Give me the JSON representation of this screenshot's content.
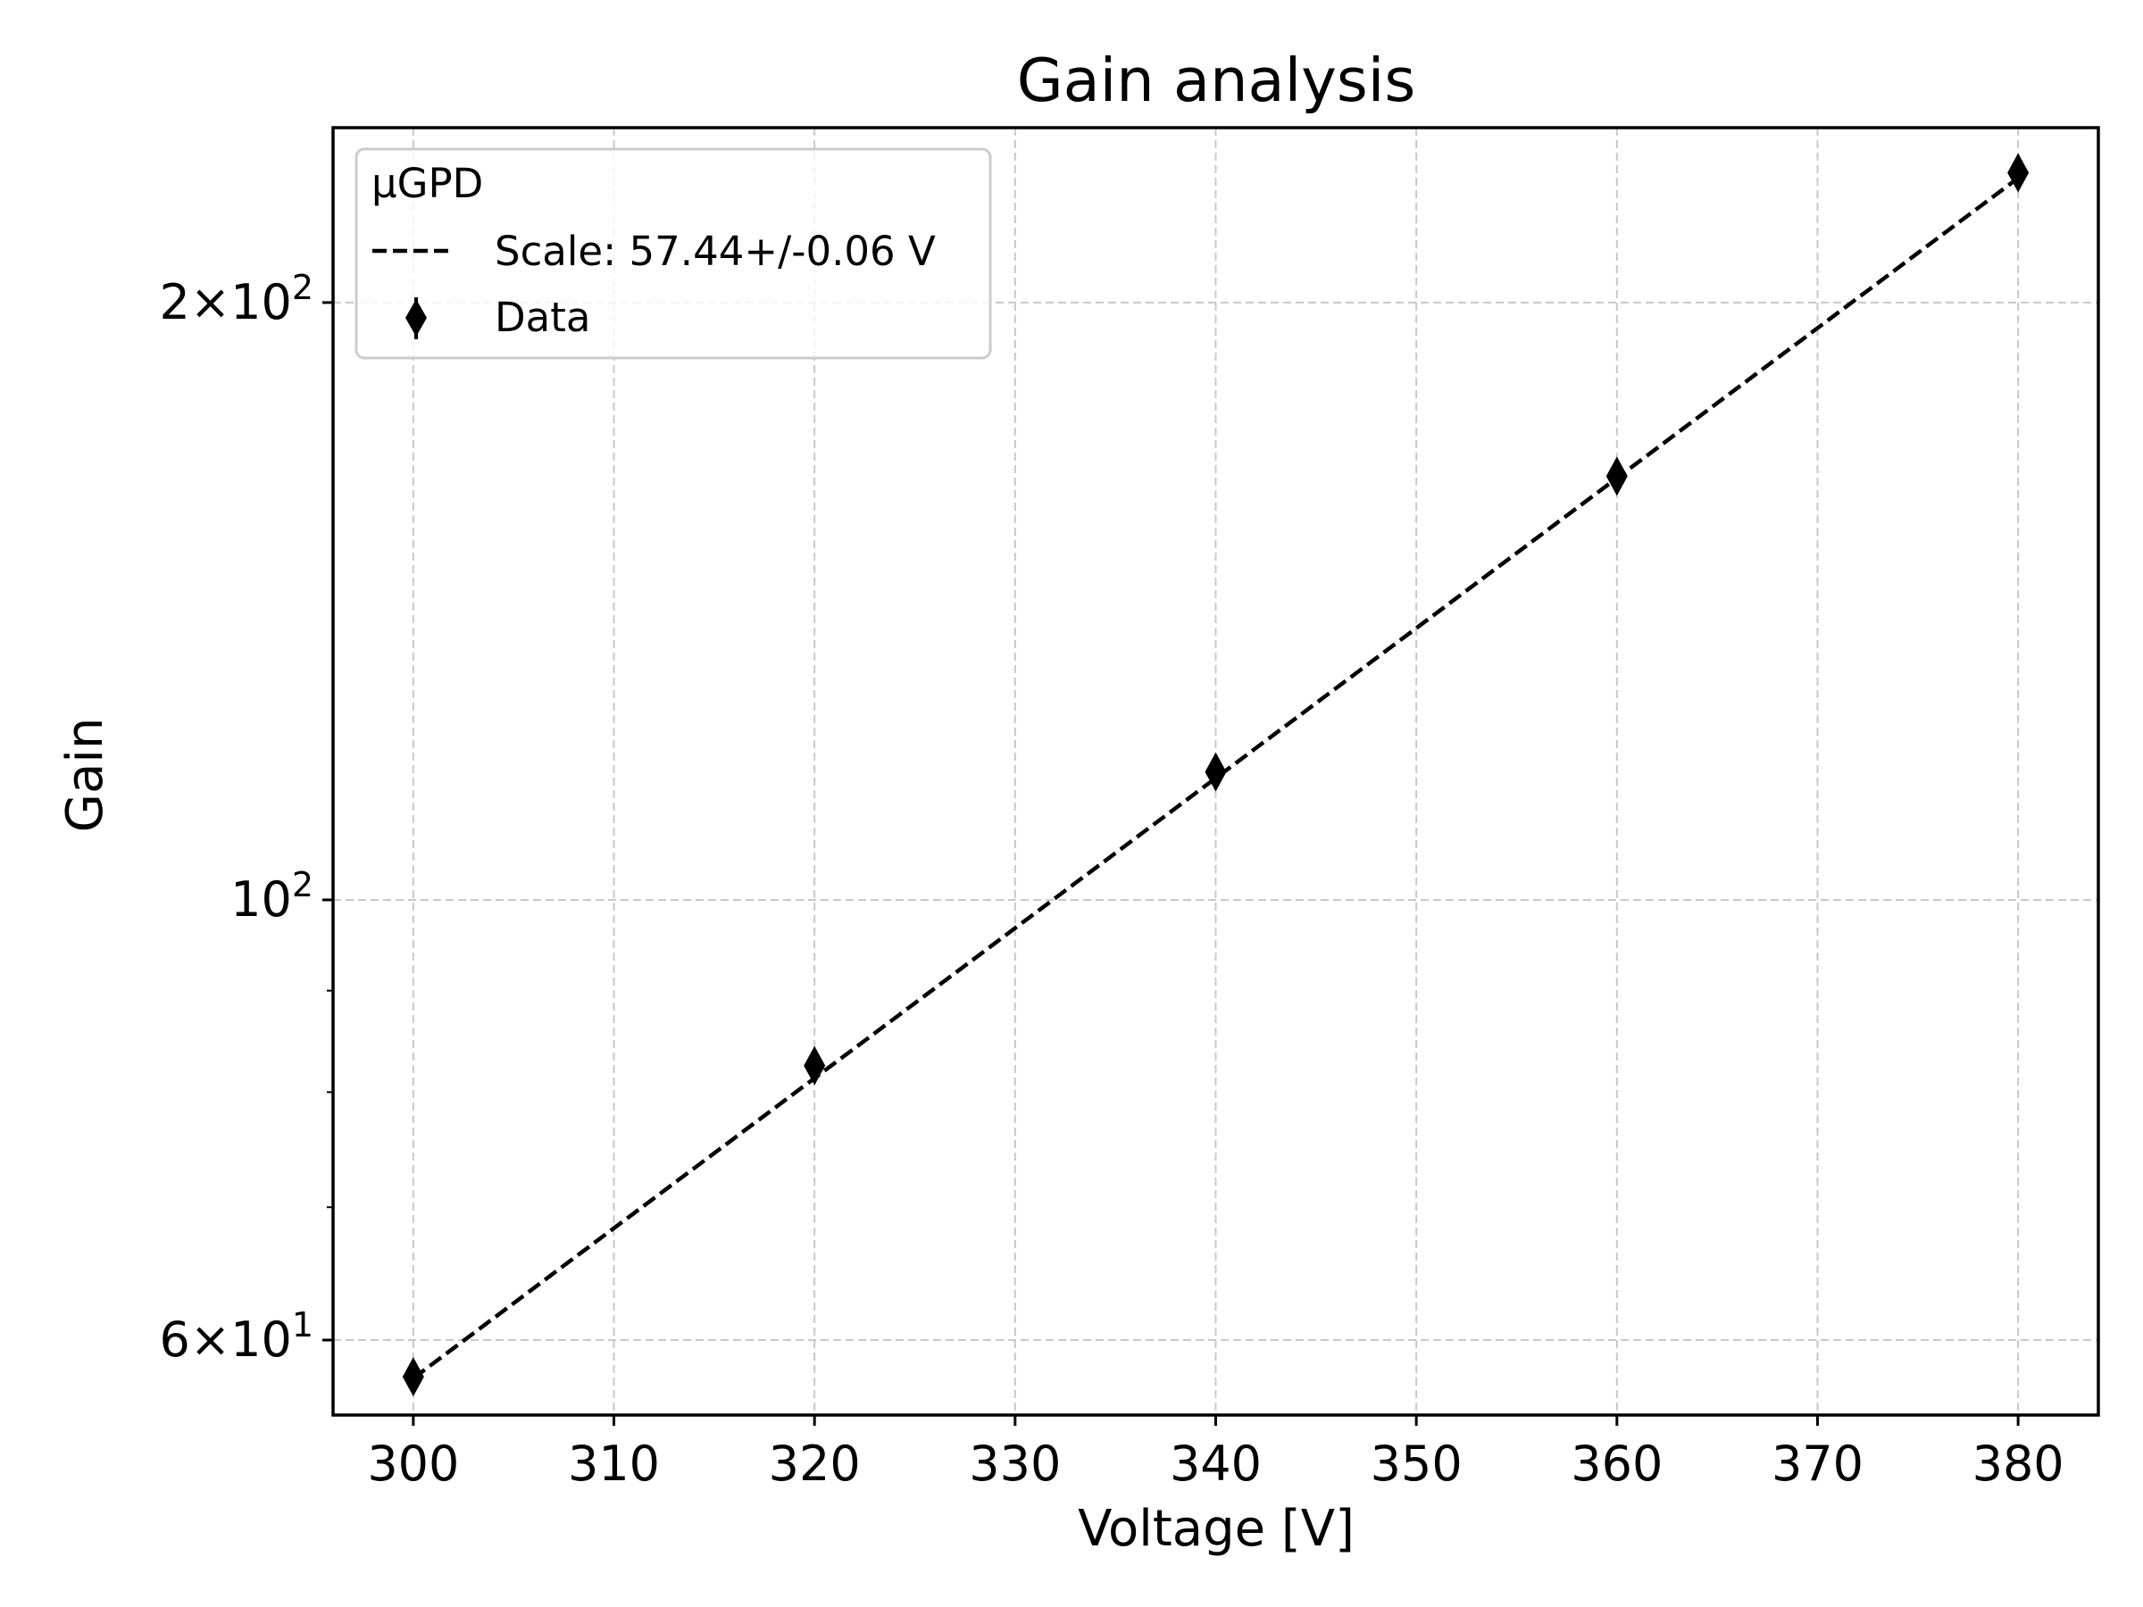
{
  "chart_data": {
    "type": "scatter",
    "title": "Gain analysis",
    "xlabel": "Voltage [V]",
    "ylabel": "Gain",
    "xlim": [
      296,
      384
    ],
    "ylim": [
      55,
      245
    ],
    "yscale": "log",
    "grid": true,
    "x_ticks": [
      300,
      310,
      320,
      330,
      340,
      350,
      360,
      370,
      380
    ],
    "y_ticks": [
      {
        "value": 60,
        "mantissa": "6",
        "exponent": "1"
      },
      {
        "value": 100,
        "mantissa": "",
        "exponent": "2"
      },
      {
        "value": 200,
        "mantissa": "2",
        "exponent": "2"
      }
    ],
    "y_minor_ticks": [
      70,
      80,
      90
    ],
    "legend": {
      "title": "μGPD",
      "placement": "top-left",
      "entries": [
        {
          "label": "Scale: 57.44+/-0.06 V",
          "style": "dashed-line"
        },
        {
          "label": "Data",
          "style": "diamond-marker"
        }
      ]
    },
    "series": [
      {
        "name": "Data",
        "marker": "diamond",
        "color": "#000000",
        "x": [
          300,
          320,
          340,
          360,
          380
        ],
        "y": [
          57.5,
          82.5,
          116.0,
          163.5,
          232.5
        ]
      },
      {
        "name": "Scale: 57.44+/-0.06 V",
        "style": "dashed",
        "color": "#000000",
        "fit": {
          "type": "exponential",
          "scale": 57.44,
          "scale_err": 0.06,
          "x0": 300,
          "y0": 57.4
        }
      }
    ]
  }
}
